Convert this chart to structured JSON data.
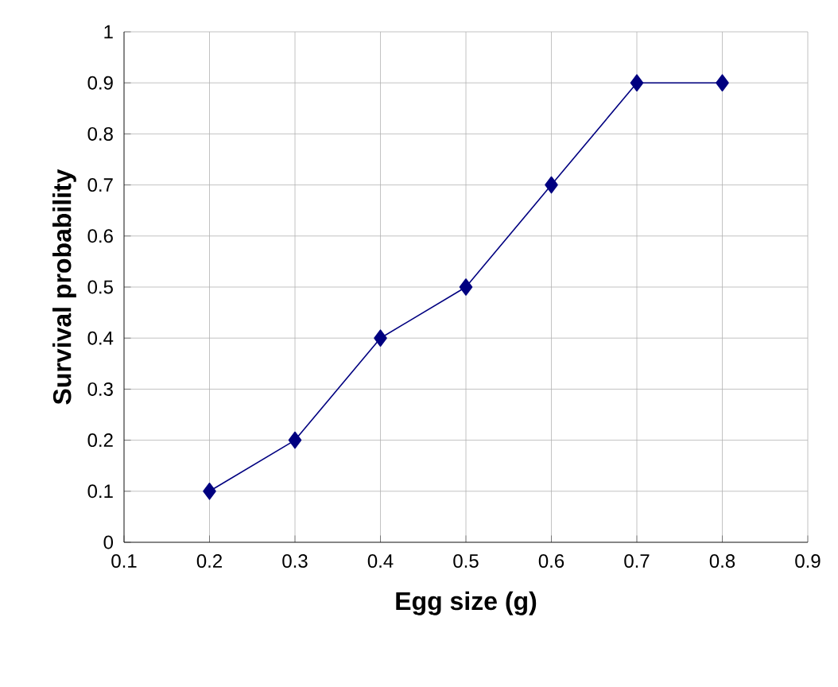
{
  "chart_data": {
    "type": "line",
    "xlabel": "Egg size (g)",
    "ylabel": "Survival probability",
    "x": [
      0.2,
      0.3,
      0.4,
      0.5,
      0.6,
      0.7,
      0.8
    ],
    "series": [
      {
        "color": "#000080",
        "values": [
          0.1,
          0.2,
          0.4,
          0.5,
          0.7,
          0.9,
          0.9
        ]
      }
    ],
    "xlim": [
      0.1,
      0.9
    ],
    "xticks": [
      0.1,
      0.2,
      0.3,
      0.4,
      0.5,
      0.6,
      0.7,
      0.8,
      0.9
    ],
    "ylim": [
      0,
      1
    ],
    "yticks": [
      0,
      0.1,
      0.2,
      0.3,
      0.4,
      0.5,
      0.6,
      0.7,
      0.8,
      0.9,
      1
    ],
    "grid": true,
    "marker": "diamond",
    "line_style": "solid"
  }
}
